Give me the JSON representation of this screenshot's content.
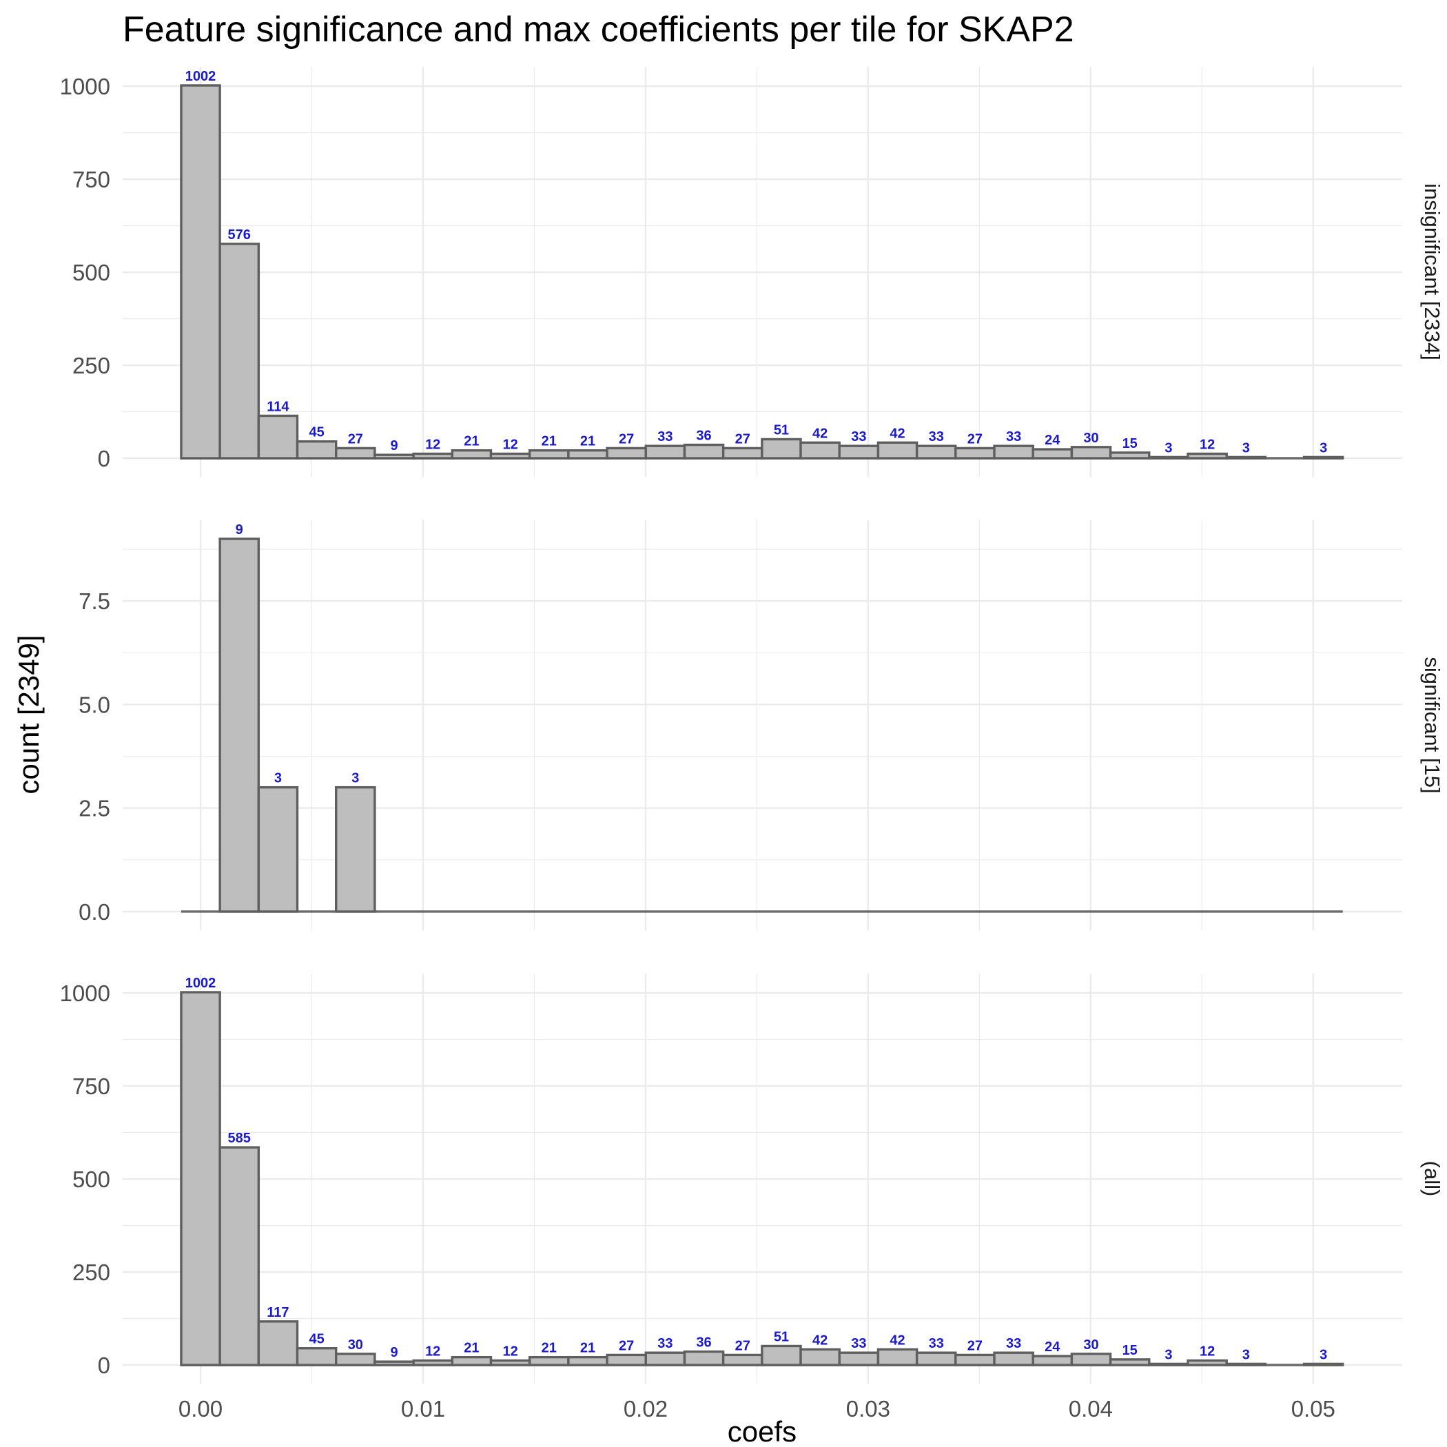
{
  "chart_data": {
    "type": "bar",
    "title": "Feature significance and max coefficients per tile for SKAP2",
    "xlabel": "coefs",
    "ylabel": "count [2349]",
    "x_ticks": [
      "0.00",
      "0.01",
      "0.02",
      "0.03",
      "0.04",
      "0.05"
    ],
    "x_tick_values": [
      0,
      0.01,
      0.02,
      0.03,
      0.04,
      0.05
    ],
    "xlim": [
      -0.0035,
      0.054
    ],
    "bin_width": 0.00174,
    "bin_centers": [
      0,
      0.00174,
      0.00348,
      0.00522,
      0.00696,
      0.0087,
      0.01044,
      0.01218,
      0.01392,
      0.01566,
      0.0174,
      0.01914,
      0.02088,
      0.02262,
      0.02436,
      0.0261,
      0.02784,
      0.02958,
      0.03132,
      0.03306,
      0.0348,
      0.03654,
      0.03828,
      0.04002,
      0.04176,
      0.0435,
      0.04524,
      0.04698,
      0.04872,
      0.05046
    ],
    "grid": true,
    "panels": [
      {
        "strip_label": "insignificant [2334]",
        "values": [
          1002,
          576,
          114,
          45,
          27,
          9,
          12,
          21,
          12,
          21,
          21,
          27,
          33,
          36,
          27,
          51,
          42,
          33,
          42,
          33,
          27,
          33,
          24,
          30,
          15,
          3,
          12,
          3,
          0,
          3
        ],
        "labels": [
          "1002",
          "576",
          "114",
          "45",
          "27",
          "9",
          "12",
          "21",
          "12",
          "21",
          "21",
          "27",
          "33",
          "36",
          "27",
          "51",
          "42",
          "33",
          "42",
          "33",
          "27",
          "33",
          "24",
          "30",
          "15",
          "3",
          "12",
          "3",
          "",
          "3"
        ],
        "y_ticks": [
          "0",
          "250",
          "500",
          "750",
          "1000"
        ],
        "y_tick_values": [
          0,
          250,
          500,
          750,
          1000
        ],
        "ylim": [
          -50,
          1052
        ]
      },
      {
        "strip_label": "significant [15]",
        "values": [
          0,
          9,
          3,
          0,
          3,
          0,
          0,
          0,
          0,
          0,
          0,
          0,
          0,
          0,
          0,
          0,
          0,
          0,
          0,
          0,
          0,
          0,
          0,
          0,
          0,
          0,
          0,
          0,
          0,
          0
        ],
        "labels": [
          "",
          "9",
          "3",
          "",
          "3",
          "",
          "",
          "",
          "",
          "",
          "",
          "",
          "",
          "",
          "",
          "",
          "",
          "",
          "",
          "",
          "",
          "",
          "",
          "",
          "",
          "",
          "",
          "",
          "",
          ""
        ],
        "y_ticks": [
          "0.0",
          "2.5",
          "5.0",
          "7.5"
        ],
        "y_tick_values": [
          0,
          2.5,
          5,
          7.5
        ],
        "ylim": [
          -0.45,
          9.45
        ]
      },
      {
        "strip_label": "(all)",
        "values": [
          1002,
          585,
          117,
          45,
          30,
          9,
          12,
          21,
          12,
          21,
          21,
          27,
          33,
          36,
          27,
          51,
          42,
          33,
          42,
          33,
          27,
          33,
          24,
          30,
          15,
          3,
          12,
          3,
          0,
          3
        ],
        "labels": [
          "1002",
          "585",
          "117",
          "45",
          "30",
          "9",
          "12",
          "21",
          "12",
          "21",
          "21",
          "27",
          "33",
          "36",
          "27",
          "51",
          "42",
          "33",
          "42",
          "33",
          "27",
          "33",
          "24",
          "30",
          "15",
          "3",
          "12",
          "3",
          "",
          "3"
        ],
        "y_ticks": [
          "0",
          "250",
          "500",
          "750",
          "1000"
        ],
        "y_tick_values": [
          0,
          250,
          500,
          750,
          1000
        ],
        "ylim": [
          -50,
          1052
        ]
      }
    ]
  }
}
